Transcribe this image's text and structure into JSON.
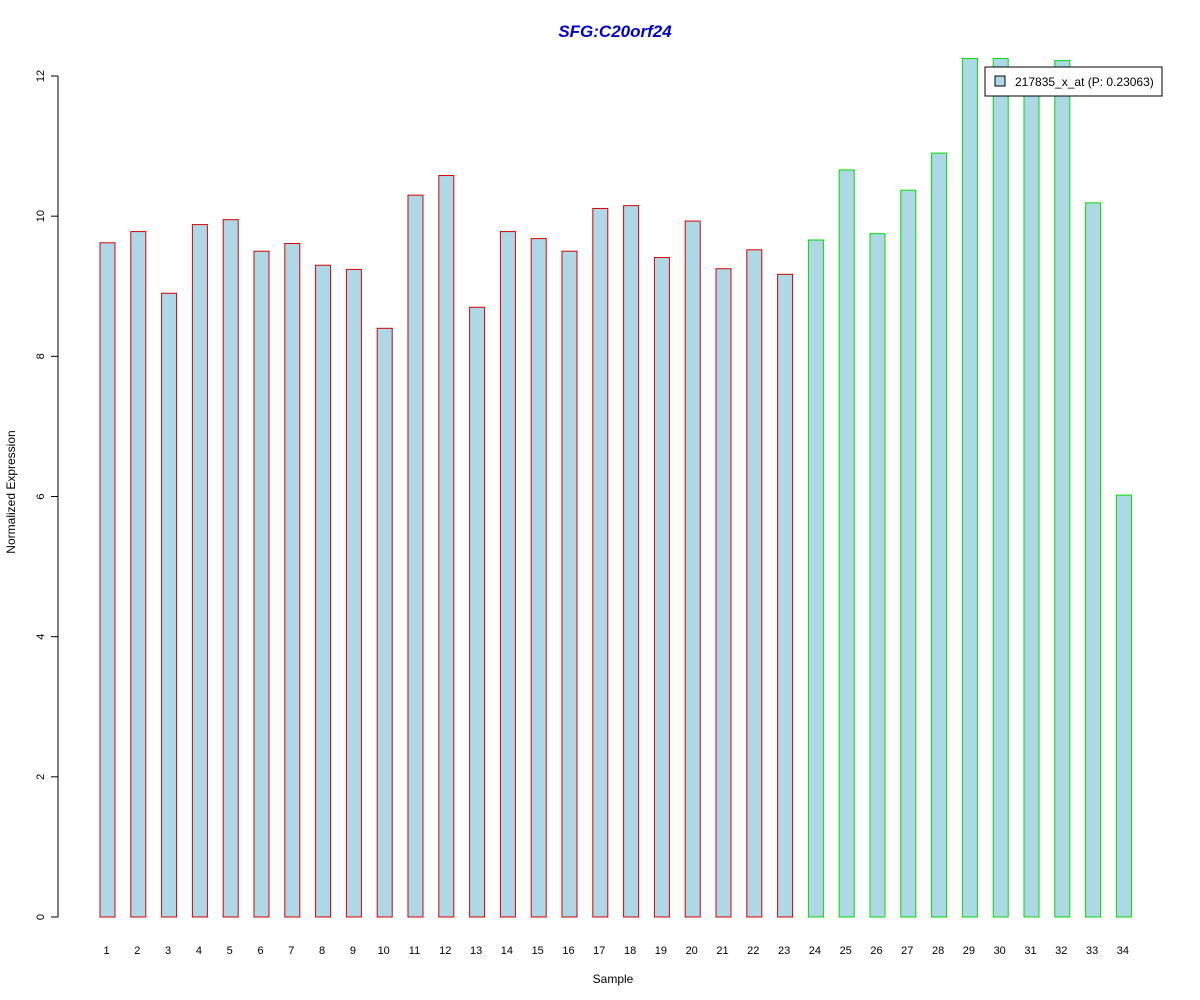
{
  "chart_data": {
    "type": "bar",
    "title": "SFG:C20orf24",
    "xlabel": "Sample",
    "ylabel": "Normalized Expression",
    "ylim": [
      0,
      12
    ],
    "y_ticks": [
      0,
      2,
      4,
      6,
      8,
      10,
      12
    ],
    "grid": false,
    "legend_position": "top-right",
    "categories": [
      "1",
      "2",
      "3",
      "4",
      "5",
      "6",
      "7",
      "8",
      "9",
      "10",
      "11",
      "12",
      "13",
      "14",
      "15",
      "16",
      "17",
      "18",
      "19",
      "20",
      "21",
      "22",
      "23",
      "24",
      "25",
      "26",
      "27",
      "28",
      "29",
      "30",
      "31",
      "32",
      "33",
      "34"
    ],
    "series": [
      {
        "name": "217835_x_at (P: 0.23063)",
        "values": [
          9.62,
          9.78,
          8.9,
          9.88,
          9.95,
          9.5,
          9.61,
          9.3,
          9.24,
          8.4,
          10.3,
          10.58,
          8.7,
          9.78,
          9.68,
          9.5,
          10.11,
          10.15,
          9.41,
          9.93,
          9.25,
          9.52,
          9.17,
          9.66,
          10.66,
          9.75,
          10.37,
          10.9,
          12.25,
          12.25,
          11.8,
          12.22,
          10.19,
          6.02
        ]
      }
    ],
    "bar_groups": [
      {
        "samples": [
          "1",
          "23"
        ],
        "outline_color": "#dd0000"
      },
      {
        "samples": [
          "24",
          "34"
        ],
        "outline_color": "#00dd00"
      }
    ]
  },
  "colors": {
    "bar_fill": "#add8e6",
    "title": "#0000cc",
    "axis": "#000000"
  }
}
